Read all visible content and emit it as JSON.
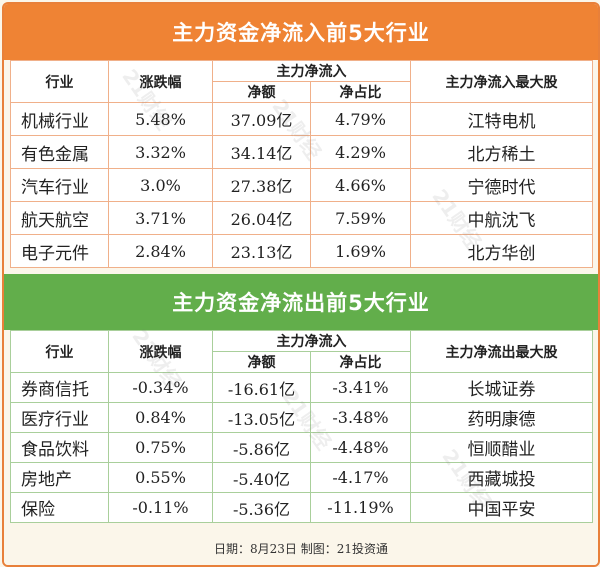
{
  "inflow": {
    "title": "主力资金净流入前5大行业",
    "headers": {
      "industry": "行业",
      "change": "涨跌幅",
      "group": "主力净流入",
      "net": "净额",
      "ratio": "净占比",
      "stock": "主力净流入最大股"
    },
    "rows": [
      {
        "industry": "机械行业",
        "change": "5.48%",
        "net": "37.09亿",
        "ratio": "4.79%",
        "stock": "江特电机"
      },
      {
        "industry": "有色金属",
        "change": "3.32%",
        "net": "34.14亿",
        "ratio": "4.29%",
        "stock": "北方稀土"
      },
      {
        "industry": "汽车行业",
        "change": "3.0%",
        "net": "27.38亿",
        "ratio": "4.66%",
        "stock": "宁德时代"
      },
      {
        "industry": "航天航空",
        "change": "3.71%",
        "net": "26.04亿",
        "ratio": "7.59%",
        "stock": "中航沈飞"
      },
      {
        "industry": "电子元件",
        "change": "2.84%",
        "net": "23.13亿",
        "ratio": "1.69%",
        "stock": "北方华创"
      }
    ]
  },
  "outflow": {
    "title": "主力资金净流出前5大行业",
    "headers": {
      "industry": "行业",
      "change": "涨跌幅",
      "group": "主力净流入",
      "net": "净额",
      "ratio": "净占比",
      "stock": "主力净流出最大股"
    },
    "rows": [
      {
        "industry": "券商信托",
        "change": "-0.34%",
        "net": "-16.61亿",
        "ratio": "-3.41%",
        "stock": "长城证券"
      },
      {
        "industry": "医疗行业",
        "change": "0.84%",
        "net": "-13.05亿",
        "ratio": "-3.48%",
        "stock": "药明康德"
      },
      {
        "industry": "食品饮料",
        "change": "0.75%",
        "net": "-5.86亿",
        "ratio": "-4.48%",
        "stock": "恒顺醋业"
      },
      {
        "industry": "房地产",
        "change": "0.55%",
        "net": "-5.40亿",
        "ratio": "-4.17%",
        "stock": "西藏城投"
      },
      {
        "industry": "保险",
        "change": "-0.11%",
        "net": "-5.36亿",
        "ratio": "-11.19%",
        "stock": "中国平安"
      }
    ]
  },
  "footer": "日期：8月23日  制图：21投资通",
  "watermark": "21财经",
  "colors": {
    "inflow_banner": "#ef8334",
    "outflow_banner": "#62ae4b",
    "background": "#fbf6ea"
  }
}
